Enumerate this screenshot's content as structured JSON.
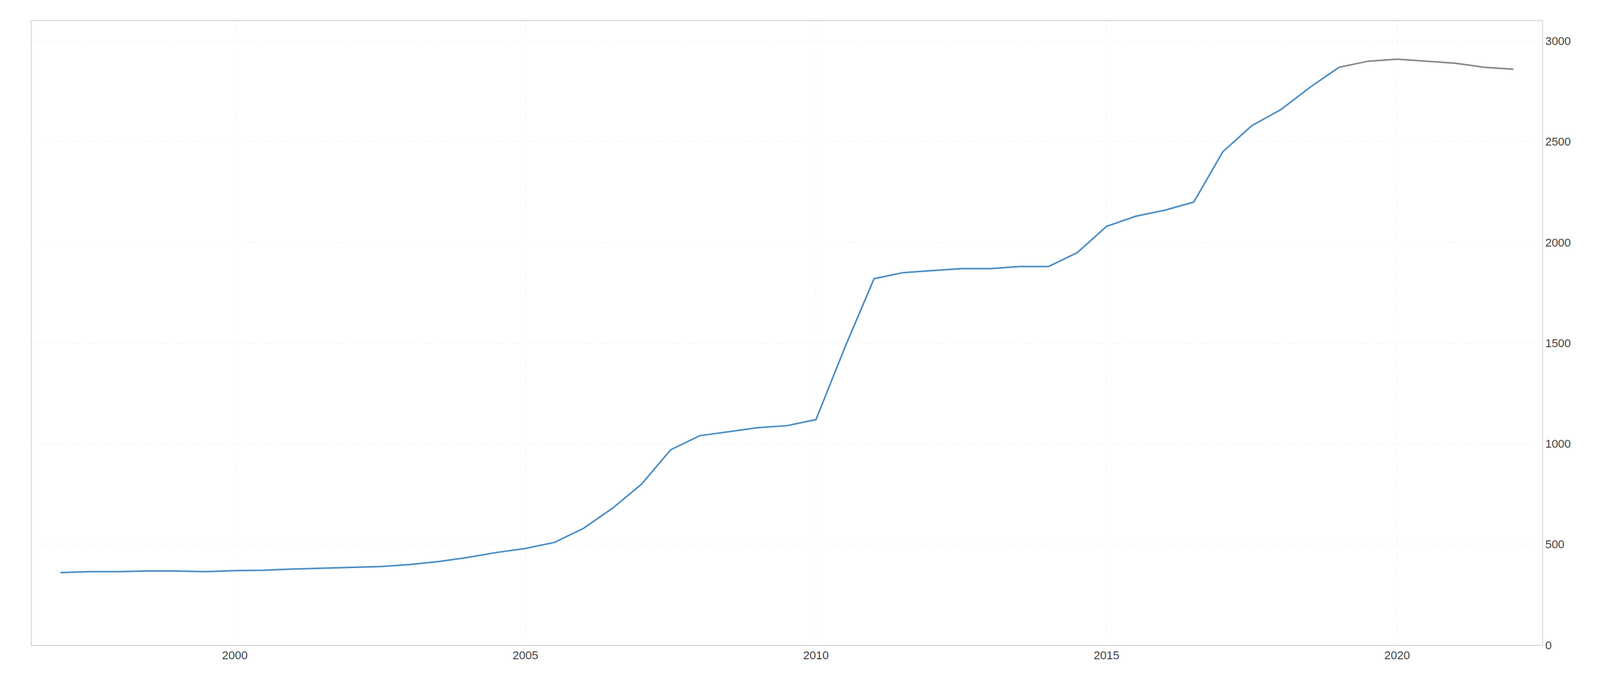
{
  "chart_data": {
    "type": "line",
    "x": [
      1997,
      1997.5,
      1998,
      1998.5,
      1999,
      1999.5,
      2000,
      2000.5,
      2001,
      2001.5,
      2002,
      2002.5,
      2003,
      2003.5,
      2004,
      2004.5,
      2005,
      2005.5,
      2006,
      2006.5,
      2007,
      2007.5,
      2008,
      2008.5,
      2009,
      2009.5,
      2010,
      2010.5,
      2011,
      2011.5,
      2012,
      2012.5,
      2013,
      2013.5,
      2014,
      2014.5,
      2015,
      2015.5,
      2016,
      2016.5,
      2017,
      2017.5,
      2018,
      2018.5,
      2019,
      2019.5,
      2020,
      2020.5,
      2021,
      2021.5,
      2022
    ],
    "series": [
      {
        "color": "#4b8dc4",
        "values": [
          360,
          365,
          365,
          368,
          368,
          365,
          370,
          372,
          378,
          382,
          385,
          390,
          400,
          415,
          435,
          460,
          480,
          510,
          580,
          680,
          800,
          970,
          1040,
          1060,
          1080,
          1090,
          1120,
          1480,
          1820,
          1850,
          1860,
          1870,
          1870,
          1880,
          1880,
          1950,
          2080,
          2130,
          2160,
          2200,
          2450,
          2580,
          2660,
          2770,
          2870,
          null,
          null,
          null,
          null,
          null,
          null
        ]
      },
      {
        "color": "#888888",
        "values": [
          null,
          null,
          null,
          null,
          null,
          null,
          null,
          null,
          null,
          null,
          null,
          null,
          null,
          null,
          null,
          null,
          null,
          null,
          null,
          null,
          null,
          null,
          null,
          null,
          null,
          null,
          null,
          null,
          null,
          null,
          null,
          null,
          null,
          null,
          null,
          null,
          null,
          null,
          null,
          null,
          null,
          null,
          null,
          null,
          2870,
          2900,
          2910,
          2900,
          2890,
          2870,
          2860
        ]
      }
    ],
    "xlim": [
      1996.5,
      2022.5
    ],
    "xticks": [
      2000,
      2005,
      2010,
      2015,
      2020
    ],
    "ylim": [
      0,
      3100
    ],
    "yticks": [
      0,
      500,
      1000,
      1500,
      2000,
      2500,
      3000
    ],
    "grid": true
  }
}
